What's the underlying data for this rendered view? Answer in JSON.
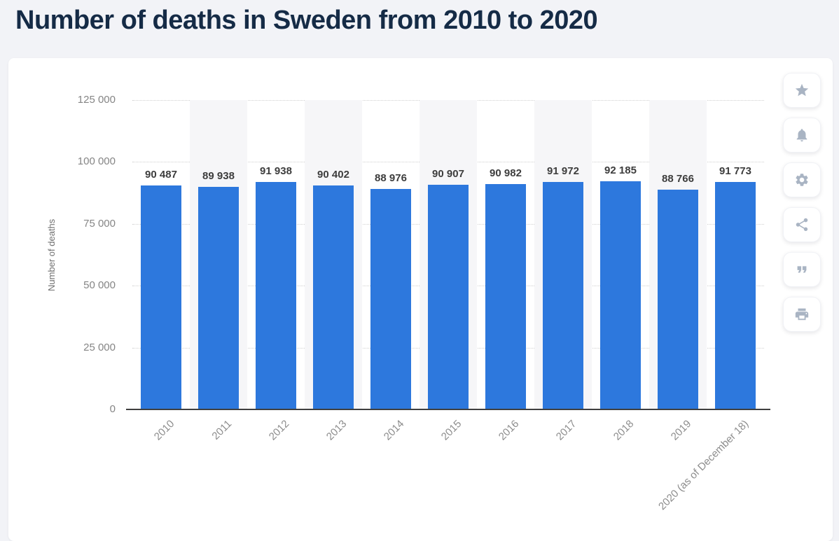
{
  "page": {
    "title": "Number of deaths in Sweden from 2010 to 2020"
  },
  "chart_data": {
    "type": "bar",
    "title": "Number of deaths in Sweden from 2010 to 2020",
    "xlabel": "",
    "ylabel": "Number of deaths",
    "ylim": [
      0,
      125000
    ],
    "ytick_labels": [
      "0",
      "25 000",
      "50 000",
      "75 000",
      "100 000",
      "125 000"
    ],
    "categories": [
      "2010",
      "2011",
      "2012",
      "2013",
      "2014",
      "2015",
      "2016",
      "2017",
      "2018",
      "2019",
      "2020 (as of December 18)"
    ],
    "values": [
      90487,
      89938,
      91938,
      90402,
      88976,
      90907,
      90982,
      91972,
      92185,
      88766,
      91773
    ],
    "value_labels": [
      "90 487",
      "89 938",
      "91 938",
      "90 402",
      "88 976",
      "90 907",
      "90 982",
      "91 972",
      "92 185",
      "88 766",
      "91 773"
    ],
    "grid": "dotted horizontal gridlines every 25 000",
    "legend_position": "none",
    "plot_background": "alternating white and light-gray vertical column bands"
  },
  "toolbar": {
    "buttons": [
      {
        "id": "favorite",
        "icon": "star-icon"
      },
      {
        "id": "alerts",
        "icon": "bell-icon"
      },
      {
        "id": "settings",
        "icon": "gear-icon"
      },
      {
        "id": "share",
        "icon": "share-icon"
      },
      {
        "id": "cite",
        "icon": "quote-icon"
      },
      {
        "id": "print",
        "icon": "printer-icon"
      }
    ]
  },
  "colors": {
    "bar": "#2d78dd",
    "title": "#152b46",
    "page_bg": "#f2f3f7",
    "card_bg": "#ffffff",
    "axis_label": "#858585",
    "value_label": "#3d3d3d",
    "icon": "#a9b4c3",
    "stripe": "#f6f6f8"
  }
}
